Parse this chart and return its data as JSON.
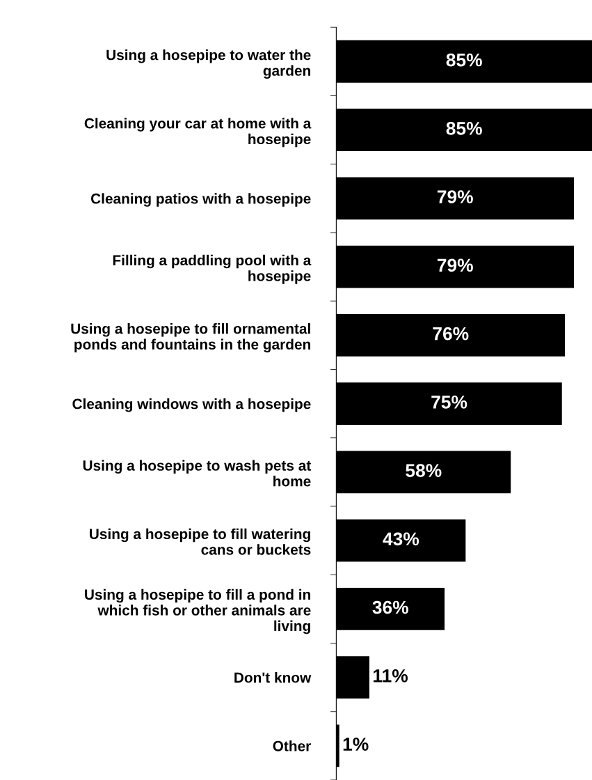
{
  "chart_data": {
    "type": "bar",
    "orientation": "horizontal",
    "data_labels": true,
    "color": "#000000",
    "categories": [
      "Using a hosepipe to water the\ngarden",
      "Cleaning your car at home with a\nhosepipe",
      "Cleaning patios with a hosepipe",
      "Filling a paddling pool with a\nhosepipe",
      "Using a hosepipe to fill ornamental\nponds and fountains in the garden",
      "Cleaning windows with a hosepipe",
      "Using a hosepipe to wash pets at\nhome",
      "Using a hosepipe to fill watering\ncans or buckets",
      "Using a hosepipe to fill a pond in\nwhich fish or other animals are\nliving",
      "Don't know",
      "Other"
    ],
    "values": [
      85,
      85,
      79,
      79,
      76,
      75,
      58,
      43,
      36,
      11,
      1
    ],
    "value_labels": [
      "85%",
      "85%",
      "79%",
      "79%",
      "76%",
      "75%",
      "58%",
      "43%",
      "36%",
      "11%",
      "1%"
    ]
  }
}
